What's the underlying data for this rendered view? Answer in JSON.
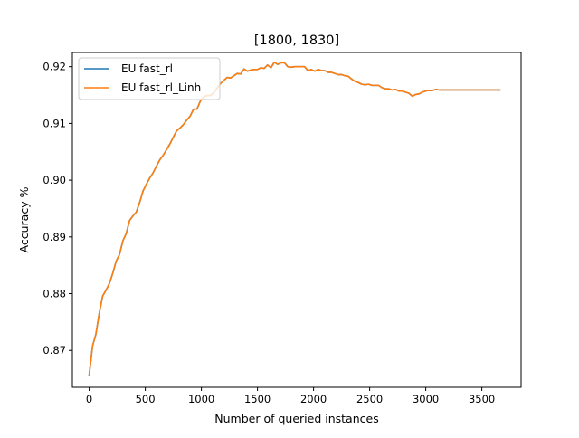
{
  "chart_data": {
    "type": "line",
    "title": "[1800, 1830]",
    "xlabel": "Number of queried instances",
    "ylabel": "Accuracy %",
    "xlim": [
      -150,
      3850
    ],
    "ylim": [
      0.8635,
      0.9225
    ],
    "xticks": [
      0,
      500,
      1000,
      1500,
      2000,
      2500,
      3000,
      3500
    ],
    "xtick_labels": [
      "0",
      "500",
      "1000",
      "1500",
      "2000",
      "2500",
      "3000",
      "3500"
    ],
    "yticks": [
      0.87,
      0.88,
      0.89,
      0.9,
      0.91,
      0.92
    ],
    "ytick_labels": [
      "0.87",
      "0.88",
      "0.89",
      "0.90",
      "0.91",
      "0.92"
    ],
    "grid": false,
    "legend": "upper left",
    "series": [
      {
        "name": "EU fast_rl",
        "color": "#1f77b4",
        "x": [
          0,
          30,
          60,
          90,
          120,
          150,
          180,
          210,
          240,
          270,
          300,
          330,
          360,
          390,
          420,
          450,
          480,
          510,
          540,
          570,
          600,
          630,
          660,
          690,
          720,
          750,
          780,
          810,
          840,
          870,
          900,
          930,
          960,
          990,
          1020,
          1050,
          1080,
          1110,
          1140,
          1170,
          1200,
          1230,
          1260,
          1290,
          1320,
          1350,
          1380,
          1410,
          1440,
          1470,
          1500,
          1530,
          1560,
          1590,
          1620,
          1650,
          1680,
          1710,
          1740,
          1770,
          1800,
          1830,
          1860,
          1890,
          1920,
          1950,
          1980,
          2010,
          2040,
          2070,
          2100,
          2130,
          2160,
          2190,
          2220,
          2250,
          2280,
          2310,
          2340,
          2370,
          2400,
          2430,
          2460,
          2490,
          2520,
          2550,
          2580,
          2610,
          2640,
          2670,
          2700,
          2730,
          2760,
          2790,
          2820,
          2850,
          2880,
          2910,
          2940,
          2970,
          3000,
          3030,
          3060,
          3090,
          3120,
          3150,
          3180,
          3210,
          3240,
          3270,
          3300,
          3330,
          3360,
          3390,
          3420,
          3450,
          3480,
          3510,
          3540,
          3570,
          3600,
          3630,
          3660
        ],
        "y": [
          0.8657,
          0.8708,
          0.8729,
          0.8766,
          0.8796,
          0.8806,
          0.8818,
          0.8836,
          0.8857,
          0.8869,
          0.8893,
          0.8906,
          0.8929,
          0.8937,
          0.8944,
          0.8961,
          0.8981,
          0.8993,
          0.9004,
          0.9013,
          0.9025,
          0.9036,
          0.9044,
          0.9054,
          0.9064,
          0.9076,
          0.9087,
          0.9092,
          0.9098,
          0.9106,
          0.9113,
          0.9125,
          0.9125,
          0.9139,
          0.9147,
          0.9149,
          0.9149,
          0.9154,
          0.9162,
          0.917,
          0.9176,
          0.9181,
          0.918,
          0.9184,
          0.9188,
          0.9187,
          0.9196,
          0.9192,
          0.9194,
          0.9195,
          0.9195,
          0.9198,
          0.9197,
          0.9203,
          0.9198,
          0.9208,
          0.9204,
          0.9207,
          0.9207,
          0.92,
          0.9199,
          0.92,
          0.92,
          0.92,
          0.92,
          0.9193,
          0.9195,
          0.9192,
          0.9195,
          0.9193,
          0.9193,
          0.919,
          0.919,
          0.9188,
          0.9186,
          0.9186,
          0.9184,
          0.9183,
          0.9178,
          0.9174,
          0.9172,
          0.9169,
          0.9168,
          0.9169,
          0.9167,
          0.9167,
          0.9167,
          0.9163,
          0.9161,
          0.9161,
          0.9159,
          0.916,
          0.9157,
          0.9157,
          0.9155,
          0.9153,
          0.9148,
          0.9151,
          0.9152,
          0.9155,
          0.9157,
          0.9158,
          0.9158,
          0.916,
          0.9159,
          0.9159,
          0.9159,
          0.9159,
          0.9159,
          0.9159,
          0.9159,
          0.9159,
          0.9159,
          0.9159,
          0.9159,
          0.9159,
          0.9159,
          0.9159,
          0.9159,
          0.9159,
          0.9159,
          0.9159,
          0.9159
        ]
      },
      {
        "name": "EU fast_rl_Linh",
        "color": "#ff7f0e",
        "x": [
          0,
          30,
          60,
          90,
          120,
          150,
          180,
          210,
          240,
          270,
          300,
          330,
          360,
          390,
          420,
          450,
          480,
          510,
          540,
          570,
          600,
          630,
          660,
          690,
          720,
          750,
          780,
          810,
          840,
          870,
          900,
          930,
          960,
          990,
          1020,
          1050,
          1080,
          1110,
          1140,
          1170,
          1200,
          1230,
          1260,
          1290,
          1320,
          1350,
          1380,
          1410,
          1440,
          1470,
          1500,
          1530,
          1560,
          1590,
          1620,
          1650,
          1680,
          1710,
          1740,
          1770,
          1800,
          1830,
          1860,
          1890,
          1920,
          1950,
          1980,
          2010,
          2040,
          2070,
          2100,
          2130,
          2160,
          2190,
          2220,
          2250,
          2280,
          2310,
          2340,
          2370,
          2400,
          2430,
          2460,
          2490,
          2520,
          2550,
          2580,
          2610,
          2640,
          2670,
          2700,
          2730,
          2760,
          2790,
          2820,
          2850,
          2880,
          2910,
          2940,
          2970,
          3000,
          3030,
          3060,
          3090,
          3120,
          3150,
          3180,
          3210,
          3240,
          3270,
          3300,
          3330,
          3360,
          3390,
          3420,
          3450,
          3480,
          3510,
          3540,
          3570,
          3600,
          3630,
          3660
        ],
        "y": [
          0.8657,
          0.8708,
          0.8729,
          0.8766,
          0.8796,
          0.8806,
          0.8818,
          0.8836,
          0.8857,
          0.8869,
          0.8893,
          0.8906,
          0.8929,
          0.8937,
          0.8944,
          0.8961,
          0.8981,
          0.8993,
          0.9004,
          0.9013,
          0.9025,
          0.9036,
          0.9044,
          0.9054,
          0.9064,
          0.9076,
          0.9087,
          0.9092,
          0.9098,
          0.9106,
          0.9113,
          0.9125,
          0.9125,
          0.9139,
          0.9147,
          0.9149,
          0.9149,
          0.9154,
          0.9162,
          0.917,
          0.9176,
          0.9181,
          0.918,
          0.9184,
          0.9188,
          0.9187,
          0.9196,
          0.9192,
          0.9194,
          0.9195,
          0.9195,
          0.9198,
          0.9197,
          0.9203,
          0.9198,
          0.9208,
          0.9204,
          0.9207,
          0.9207,
          0.92,
          0.9199,
          0.92,
          0.92,
          0.92,
          0.92,
          0.9193,
          0.9195,
          0.9192,
          0.9195,
          0.9193,
          0.9193,
          0.919,
          0.919,
          0.9188,
          0.9186,
          0.9186,
          0.9184,
          0.9183,
          0.9178,
          0.9174,
          0.9172,
          0.9169,
          0.9168,
          0.9169,
          0.9167,
          0.9167,
          0.9167,
          0.9163,
          0.9161,
          0.9161,
          0.9159,
          0.916,
          0.9157,
          0.9157,
          0.9155,
          0.9153,
          0.9148,
          0.9151,
          0.9152,
          0.9155,
          0.9157,
          0.9158,
          0.9158,
          0.916,
          0.9159,
          0.9159,
          0.9159,
          0.9159,
          0.9159,
          0.9159,
          0.9159,
          0.9159,
          0.9159,
          0.9159,
          0.9159,
          0.9159,
          0.9159,
          0.9159,
          0.9159,
          0.9159,
          0.9159,
          0.9159,
          0.9159
        ]
      }
    ]
  }
}
